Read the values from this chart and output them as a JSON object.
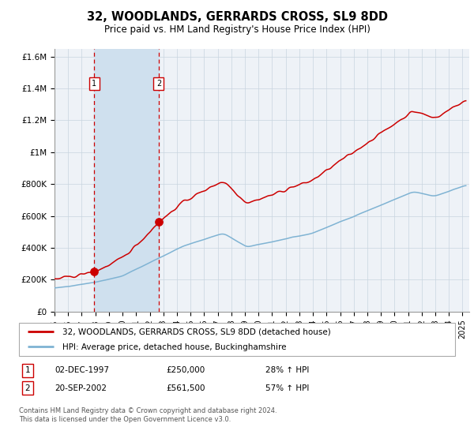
{
  "title": "32, WOODLANDS, GERRARDS CROSS, SL9 8DD",
  "subtitle": "Price paid vs. HM Land Registry's House Price Index (HPI)",
  "sale1_price": 250000,
  "sale2_price": 561500,
  "sale1_label": "1",
  "sale2_label": "2",
  "legend_line1": "32, WOODLANDS, GERRARDS CROSS, SL9 8DD (detached house)",
  "legend_line2": "HPI: Average price, detached house, Buckinghamshire",
  "table_row1_date": "02-DEC-1997",
  "table_row1_price": "£250,000",
  "table_row1_pct": "28% ↑ HPI",
  "table_row2_date": "20-SEP-2002",
  "table_row2_price": "£561,500",
  "table_row2_pct": "57% ↑ HPI",
  "footer": "Contains HM Land Registry data © Crown copyright and database right 2024.\nThis data is licensed under the Open Government Licence v3.0.",
  "ylim_max": 1650000,
  "yticks": [
    0,
    200000,
    400000,
    600000,
    800000,
    1000000,
    1200000,
    1400000,
    1600000
  ],
  "ytick_labels": [
    "£0",
    "£200K",
    "£400K",
    "£600K",
    "£800K",
    "£1M",
    "£1.2M",
    "£1.4M",
    "£1.6M"
  ],
  "red_color": "#cc0000",
  "blue_color": "#7fb3d3",
  "bg_color": "#ffffff",
  "plot_bg_color": "#eef2f7",
  "highlight_bg": "#cfe0ee",
  "grid_color": "#c8d4e0"
}
